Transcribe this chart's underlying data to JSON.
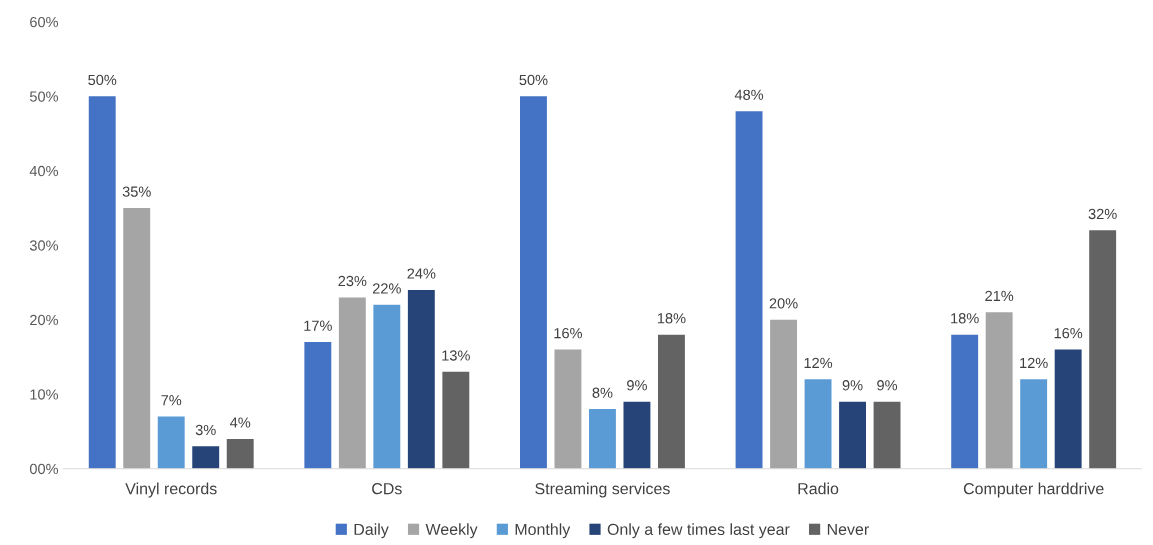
{
  "chart_data": {
    "type": "bar",
    "categories": [
      "Vinyl records",
      "CDs",
      "Streaming services",
      "Radio",
      "Computer harddrive"
    ],
    "series": [
      {
        "name": "Daily",
        "color": "#4472c4",
        "values": [
          50,
          17,
          50,
          48,
          18
        ],
        "value_labels": [
          "50%",
          "17%",
          "50%",
          "48%",
          "18%"
        ]
      },
      {
        "name": "Weekly",
        "color": "#a5a5a5",
        "values": [
          35,
          23,
          16,
          20,
          21
        ],
        "value_labels": [
          "35%",
          "23%",
          "16%",
          "20%",
          "21%"
        ]
      },
      {
        "name": "Monthly",
        "color": "#5b9bd5",
        "values": [
          7,
          22,
          8,
          12,
          12
        ],
        "value_labels": [
          "7%",
          "22%",
          "8%",
          "12%",
          "12%"
        ]
      },
      {
        "name": "Only a few times last year",
        "color": "#264478",
        "values": [
          3,
          24,
          9,
          9,
          16
        ],
        "value_labels": [
          "3%",
          "24%",
          "9%",
          "9%",
          "16%"
        ]
      },
      {
        "name": "Never",
        "color": "#636363",
        "values": [
          4,
          13,
          18,
          9,
          32
        ],
        "value_labels": [
          "4%",
          "13%",
          "18%",
          "9%",
          "32%"
        ]
      }
    ],
    "ylim": [
      0,
      60
    ],
    "yticks": [
      {
        "value": 0,
        "label": "00%"
      },
      {
        "value": 10,
        "label": "10%"
      },
      {
        "value": 20,
        "label": "20%"
      },
      {
        "value": 30,
        "label": "30%"
      },
      {
        "value": 40,
        "label": "40%"
      },
      {
        "value": 50,
        "label": "50%"
      },
      {
        "value": 60,
        "label": "60%"
      }
    ],
    "grid": false,
    "legend": "bottom"
  }
}
